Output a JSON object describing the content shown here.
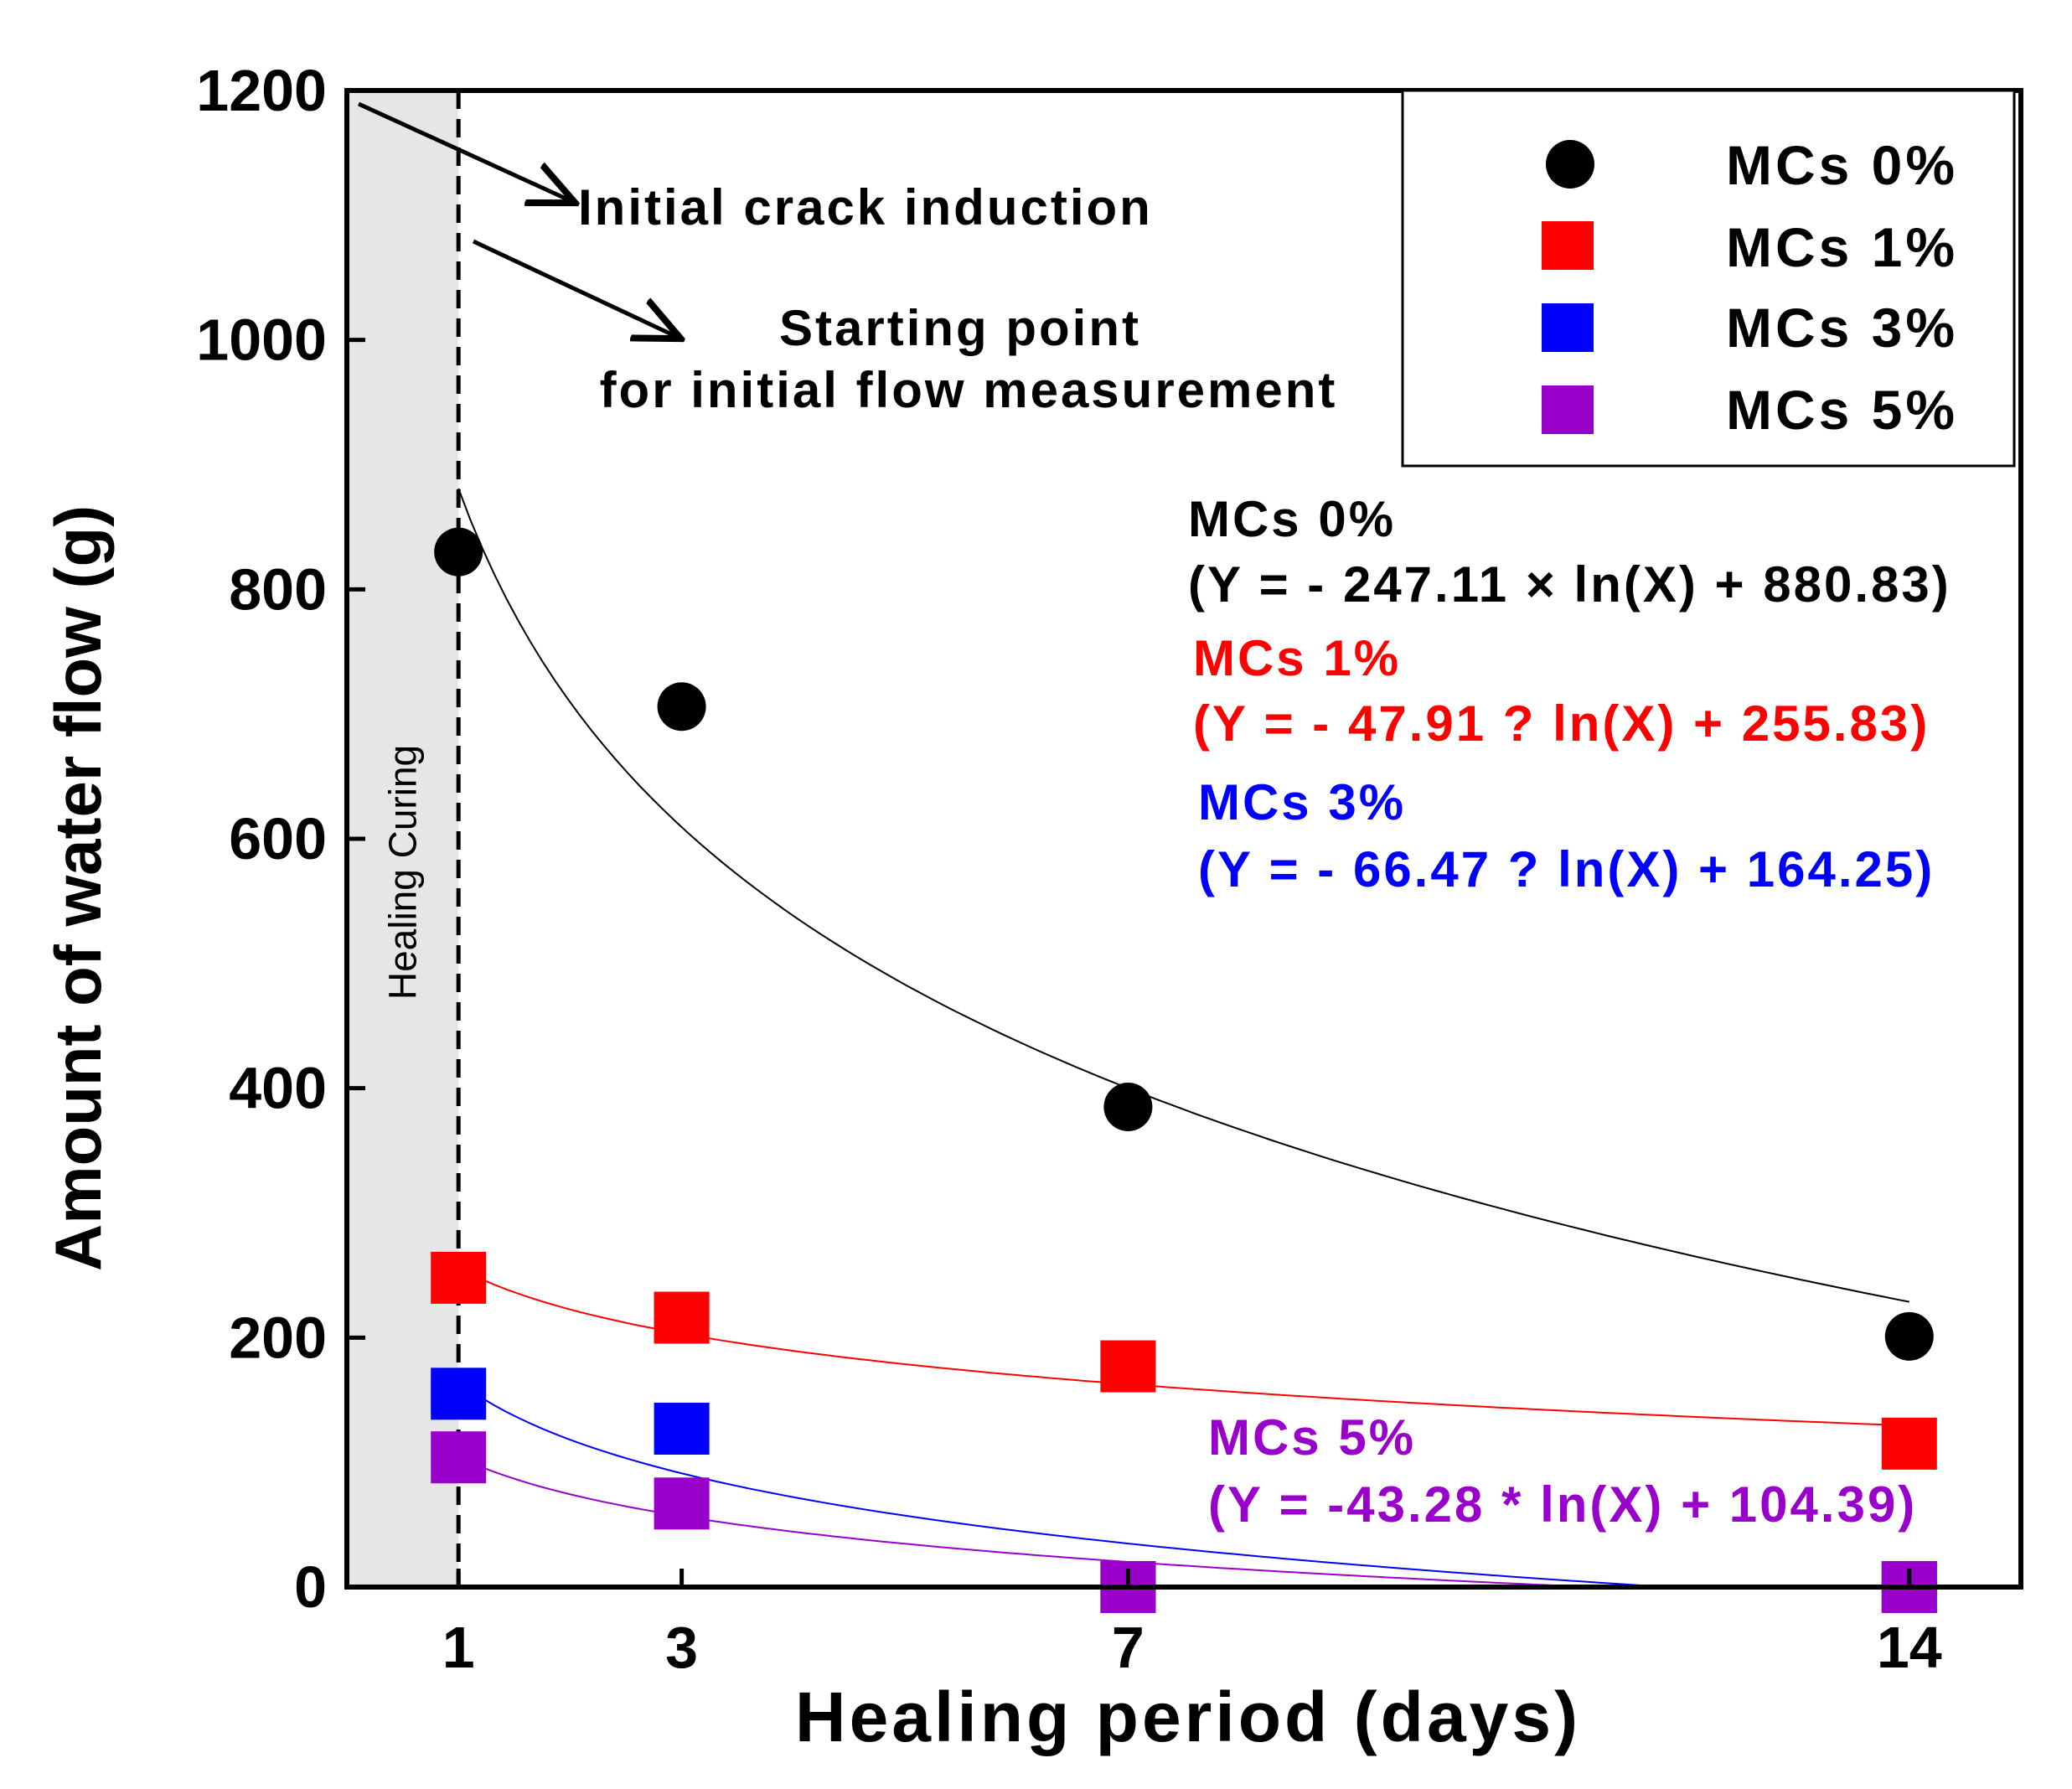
{
  "chart_data": {
    "type": "scatter",
    "xlabel": "Healing period (days)",
    "ylabel": "Amount of water flow (g)",
    "x_ticks": [
      1,
      3,
      7,
      14
    ],
    "x_tick_labels": [
      "1",
      "3",
      "7",
      "14"
    ],
    "xlim": [
      0,
      15
    ],
    "y_ticks": [
      0,
      200,
      400,
      600,
      800,
      1000,
      1200
    ],
    "y_tick_labels": [
      "0",
      "200",
      "400",
      "600",
      "800",
      "1000",
      "1200"
    ],
    "ylim": [
      0,
      1200
    ],
    "grid": false,
    "legend_position": "top-right",
    "series": [
      {
        "name": "MCs 0%",
        "marker": "circle",
        "color": "#000000",
        "x": [
          1,
          3,
          7,
          14
        ],
        "y": [
          830,
          706,
          385,
          201
        ],
        "fit": {
          "a": -247.11,
          "b": 880.83,
          "x_range": [
            1,
            14
          ]
        }
      },
      {
        "name": "MCs 1%",
        "marker": "square",
        "color": "#ff0000",
        "x": [
          1,
          3,
          7,
          14
        ],
        "y": [
          248,
          216,
          177,
          115
        ],
        "fit": {
          "a": -47.91,
          "b": 255.83,
          "x_range": [
            1,
            14
          ]
        }
      },
      {
        "name": "MCs 3%",
        "marker": "square",
        "color": "#0000ff",
        "x": [
          1,
          3,
          7,
          14
        ],
        "y": [
          155,
          127,
          0,
          0
        ],
        "fit": {
          "a": -66.47,
          "b": 164.25,
          "x_range": [
            1,
            14
          ]
        }
      },
      {
        "name": "MCs 5%",
        "marker": "square",
        "color": "#9900cc",
        "x": [
          1,
          3,
          7,
          14
        ],
        "y": [
          104,
          67,
          0,
          0
        ],
        "fit": {
          "a": -43.28,
          "b": 104.39,
          "x_range": [
            1,
            14
          ]
        }
      }
    ],
    "equations": [
      {
        "title": "MCs 0%",
        "formula": "(Y = - 247.11 × ln(X) + 880.83)",
        "color": "#000000"
      },
      {
        "title": "MCs 1%",
        "formula": "(Y = - 47.91 ? ln(X) + 255.83)",
        "color": "#ff0000"
      },
      {
        "title": "MCs 3%",
        "formula": "(Y = - 66.47 ? ln(X) + 164.25)",
        "color": "#0000ff"
      },
      {
        "title": "MCs 5%",
        "formula": "(Y = -43.28 * ln(X) + 104.39)",
        "color": "#9900cc"
      }
    ],
    "shaded_region": {
      "x_range": [
        0,
        1
      ],
      "label": "Healing Curing",
      "color": "#e6e6e6"
    },
    "annotations": {
      "initial_crack": "Initial crack induction",
      "starting_point_line1": "Starting point",
      "starting_point_line2": "for initial flow measurement"
    }
  }
}
